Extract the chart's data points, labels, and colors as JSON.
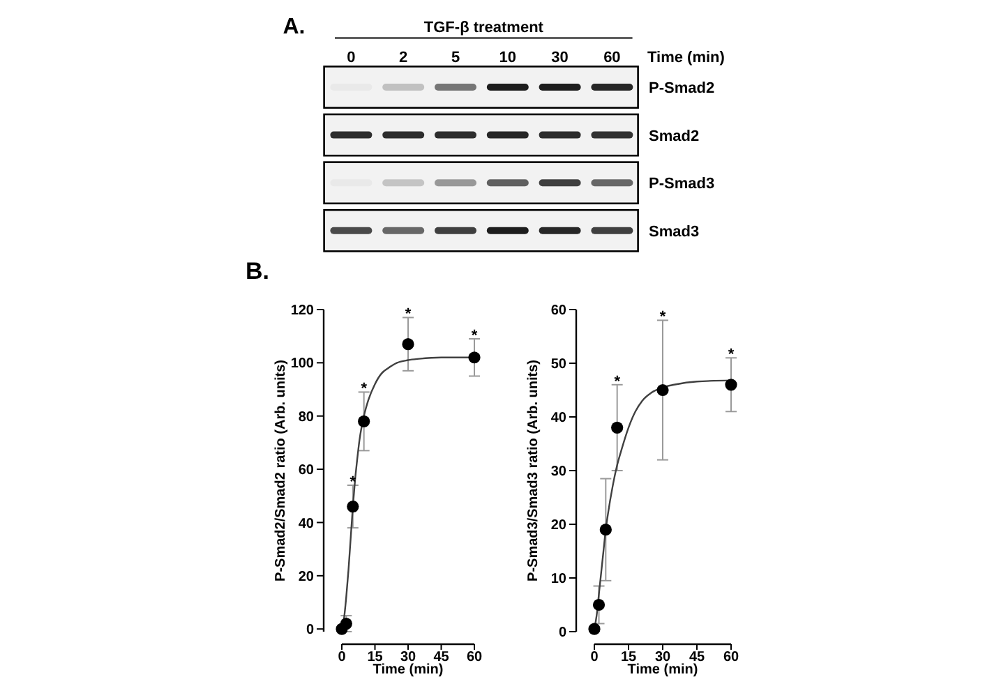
{
  "chart_data": [
    {
      "type": "other",
      "title": "A.",
      "subtitle": "TGF-β treatment",
      "categories": [
        "0",
        "2",
        "5",
        "10",
        "30",
        "60"
      ],
      "xlabel": "Time (min)",
      "y_categories": [
        "P-Smad2",
        "Smad2",
        "P-Smad3",
        "Smad3"
      ]
    },
    {
      "type": "scatter",
      "title": "B.",
      "xlabel": "Time (min)",
      "ylabel": "P-Smad2/Smad2 ratio (Arb. units)",
      "xlim": [
        0,
        60
      ],
      "xticks": [
        0,
        15,
        30,
        45,
        60
      ],
      "ylim": [
        0,
        120
      ],
      "yticks": [
        0,
        20,
        40,
        60,
        80,
        100,
        120
      ],
      "series": [
        {
          "color": "#000000",
          "marker": "circle",
          "x": [
            0,
            2,
            5,
            10,
            30,
            60
          ],
          "values": [
            0,
            2,
            46,
            78,
            107,
            102
          ],
          "errors": [
            null,
            3,
            8,
            11,
            10,
            7
          ]
        },
        {
          "type": "line",
          "color": "#404040",
          "x": [
            0,
            1,
            2,
            3,
            4,
            5,
            6,
            7,
            8,
            10,
            12,
            15,
            18,
            21,
            25,
            30,
            35,
            45,
            60
          ],
          "values": [
            0,
            4,
            12,
            22,
            34,
            46,
            56,
            64,
            71,
            80,
            86,
            92,
            96,
            98,
            100,
            101,
            101.5,
            102,
            102
          ]
        }
      ],
      "annotations": [
        {
          "text": "*",
          "x": 5,
          "y": 54
        },
        {
          "text": "*",
          "x": 10,
          "y": 89
        },
        {
          "text": "*",
          "x": 30,
          "y": 117
        },
        {
          "text": "*",
          "x": 60,
          "y": 109
        }
      ]
    },
    {
      "type": "scatter",
      "xlabel": "Time (min)",
      "ylabel": "P-Smad3/Smad3 ratio (Arb. units)",
      "xlim": [
        0,
        60
      ],
      "xticks": [
        0,
        15,
        30,
        45,
        60
      ],
      "ylim": [
        0,
        60
      ],
      "yticks": [
        0,
        10,
        20,
        30,
        40,
        50,
        60
      ],
      "series": [
        {
          "color": "#000000",
          "marker": "circle",
          "x": [
            0,
            2,
            5,
            10,
            30,
            60
          ],
          "values": [
            0.5,
            5,
            19,
            38,
            45,
            46
          ],
          "errors": [
            null,
            3.5,
            9.5,
            8,
            13,
            5
          ]
        },
        {
          "type": "line",
          "color": "#404040",
          "x": [
            0,
            1,
            2,
            3,
            4,
            5,
            6,
            8,
            10,
            12,
            15,
            18,
            21,
            25,
            30,
            35,
            45,
            60
          ],
          "values": [
            0.5,
            3,
            7,
            11,
            15,
            19,
            22,
            27,
            31,
            34,
            38,
            41,
            43,
            44.5,
            45.5,
            46,
            46.6,
            46.8
          ]
        }
      ],
      "annotations": [
        {
          "text": "*",
          "x": 10,
          "y": 46
        },
        {
          "text": "*",
          "x": 30,
          "y": 58
        },
        {
          "text": "*",
          "x": 60,
          "y": 51
        }
      ]
    }
  ]
}
